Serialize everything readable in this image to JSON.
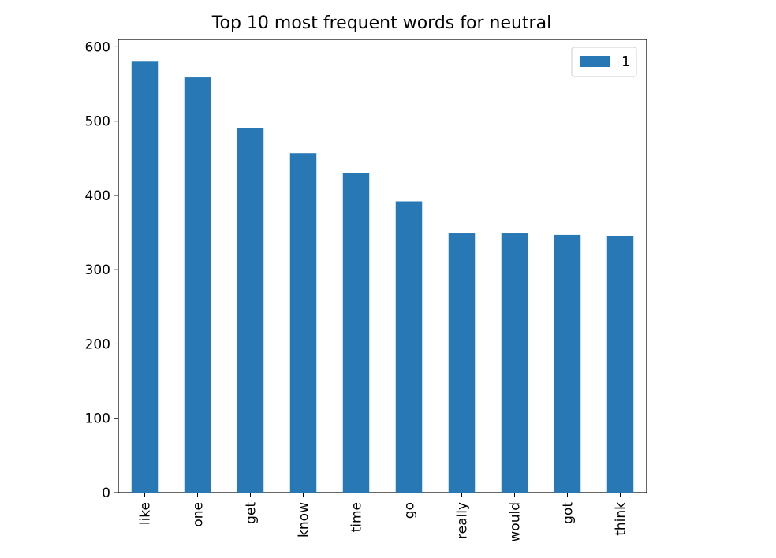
{
  "chart_data": {
    "type": "bar",
    "title": "Top 10 most frequent words for neutral",
    "xlabel": "",
    "ylabel": "",
    "categories": [
      "like",
      "one",
      "get",
      "know",
      "time",
      "go",
      "really",
      "would",
      "got",
      "think"
    ],
    "series": [
      {
        "name": "1",
        "values": [
          580,
          559,
          491,
          457,
          430,
          392,
          349,
          349,
          347,
          345
        ],
        "color": "#2878b5"
      }
    ],
    "ylim": [
      0,
      610
    ],
    "yticks": [
      0,
      100,
      200,
      300,
      400,
      500,
      600
    ],
    "grid": false,
    "legend": "top-right"
  }
}
